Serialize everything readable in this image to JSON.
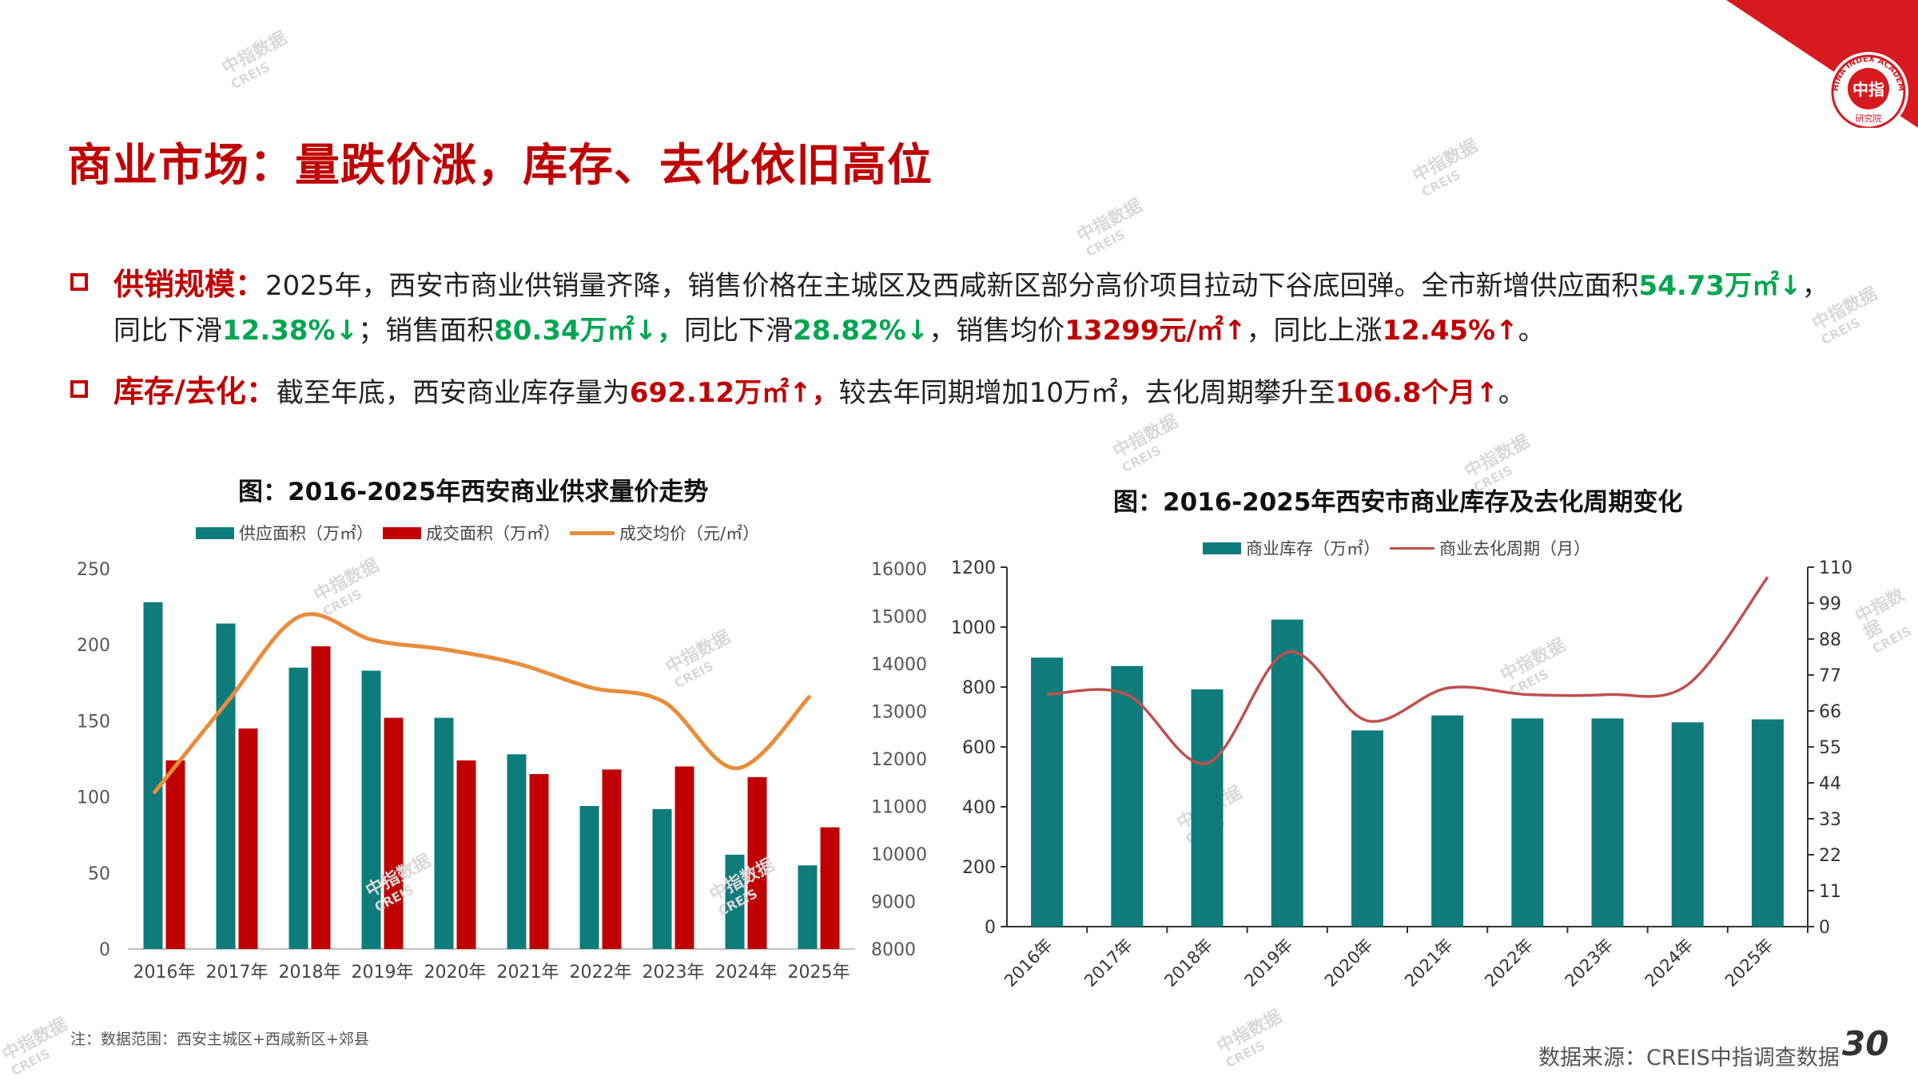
{
  "page": {
    "title": "商业市场：量跌价涨，库存、去化依旧高位",
    "bullets": [
      {
        "lead": "供销规模：",
        "parts": [
          {
            "t": "2025年，西安市商业供销量齐降，销售价格在主城区及西咸新区部分高价项目拉动下谷底回弹。全市新增供应面积",
            "c": ""
          },
          {
            "t": "54.73万㎡↓",
            "c": "g"
          },
          {
            "t": "，同比下滑",
            "c": ""
          },
          {
            "t": "12.38%↓",
            "c": "g"
          },
          {
            "t": "；销售面积",
            "c": ""
          },
          {
            "t": "80.34万㎡↓，",
            "c": "g"
          },
          {
            "t": "同比下滑",
            "c": ""
          },
          {
            "t": "28.82%↓",
            "c": "g"
          },
          {
            "t": "，销售均价",
            "c": ""
          },
          {
            "t": "13299元/㎡↑",
            "c": "r"
          },
          {
            "t": "，同比上涨",
            "c": ""
          },
          {
            "t": "12.45%↑",
            "c": "r"
          },
          {
            "t": "。",
            "c": ""
          }
        ]
      },
      {
        "lead": "库存/去化：",
        "parts": [
          {
            "t": "截至年底，西安商业库存量为",
            "c": ""
          },
          {
            "t": "692.12万㎡↑，",
            "c": "r"
          },
          {
            "t": "较去年同期增加10万㎡，去化周期攀升至",
            "c": ""
          },
          {
            "t": "106.8个月↑",
            "c": "r"
          },
          {
            "t": "。",
            "c": ""
          }
        ]
      }
    ],
    "note": "注：数据范围：西安主城区+西咸新区+郊县",
    "source": "数据来源：CREIS中指调查数据",
    "page_number": "30",
    "logo": {
      "text": "中指",
      "ring_text": "CHINA INDEX ACADEMY",
      "sub_text": "研究院"
    },
    "watermark": {
      "main": "中指数据",
      "sub": "CREIS"
    },
    "colors": {
      "red": "#c00000",
      "teal": "#0e7c7b",
      "green": "#00a651",
      "orange": "#e88d3a",
      "brown": "#c0504d"
    }
  },
  "chart_data": [
    {
      "type": "bar",
      "title": "图：2016-2025年西安商业供求量价走势",
      "categories": [
        "2016年",
        "2017年",
        "2018年",
        "2019年",
        "2020年",
        "2021年",
        "2022年",
        "2023年",
        "2024年",
        "2025年"
      ],
      "series": [
        {
          "name": "供应面积（万㎡）",
          "type": "bar",
          "axis": "left",
          "values": [
            228,
            214,
            185,
            183,
            152,
            128,
            94,
            92,
            62,
            55
          ]
        },
        {
          "name": "成交面积（万㎡）",
          "type": "bar",
          "axis": "left",
          "values": [
            124,
            145,
            199,
            152,
            124,
            115,
            118,
            120,
            113,
            80
          ]
        },
        {
          "name": "成交均价（元/㎡）",
          "type": "line",
          "axis": "right",
          "values": [
            11300,
            13200,
            15000,
            14500,
            14300,
            14000,
            13500,
            13200,
            11800,
            13300
          ]
        }
      ],
      "y_left": {
        "min": 0,
        "max": 250,
        "ticks": [
          0,
          50,
          100,
          150,
          200,
          250
        ]
      },
      "y_right": {
        "min": 8000,
        "max": 16000,
        "ticks": [
          8000,
          9000,
          10000,
          11000,
          12000,
          13000,
          14000,
          15000,
          16000
        ]
      },
      "legend": "top",
      "grid": false
    },
    {
      "type": "bar",
      "title": "图：2016-2025年西安市商业库存及去化周期变化",
      "categories": [
        "2016年",
        "2017年",
        "2018年",
        "2019年",
        "2020年",
        "2021年",
        "2022年",
        "2023年",
        "2024年",
        "2025年"
      ],
      "series": [
        {
          "name": "商业库存（万㎡）",
          "type": "bar",
          "axis": "left",
          "values": [
            898,
            870,
            792,
            1025,
            655,
            705,
            695,
            695,
            682,
            692
          ]
        },
        {
          "name": "商业去化周期（月）",
          "type": "line",
          "axis": "right",
          "values": [
            71,
            71,
            50,
            84,
            63,
            73,
            71,
            71,
            74,
            107
          ]
        }
      ],
      "y_left": {
        "min": 0,
        "max": 1200,
        "ticks": [
          0,
          200,
          400,
          600,
          800,
          1000,
          1200
        ]
      },
      "y_right": {
        "min": 0,
        "max": 110,
        "ticks": [
          0,
          11,
          22,
          33,
          44,
          55,
          66,
          77,
          88,
          99,
          110
        ]
      },
      "legend": "top",
      "grid": false
    }
  ]
}
